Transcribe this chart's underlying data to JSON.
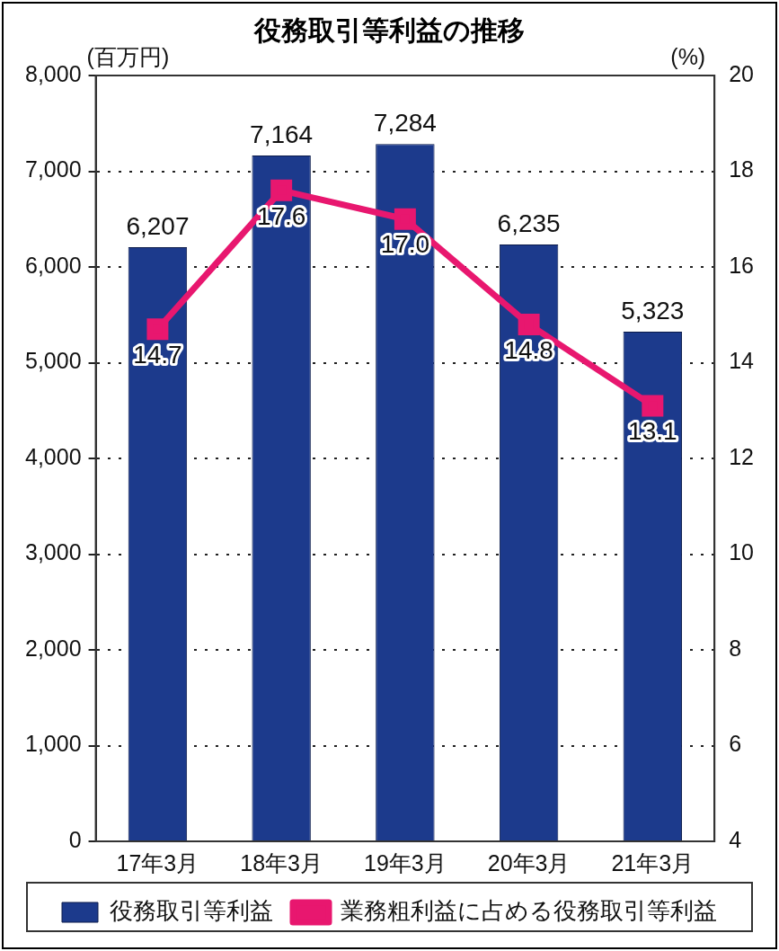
{
  "chart_data": {
    "type": "bar",
    "title": "役務取引等利益の推移",
    "ylabel": "(百万円)",
    "y2label": "(%)",
    "categories": [
      "17年3月",
      "18年3月",
      "19年3月",
      "20年3月",
      "21年3月"
    ],
    "series": [
      {
        "name": "役務取引等利益",
        "color": "#1c3a8c",
        "values": [
          6207,
          7164,
          7284,
          6235,
          5323
        ],
        "value_labels": [
          "6,207",
          "7,164",
          "7,284",
          "6,235",
          "5,323"
        ]
      },
      {
        "name": "業務粗利益に占める役務取引等利益",
        "type": "line",
        "axis": "y2",
        "color": "#e8176f",
        "marker": "square",
        "values": [
          14.7,
          17.6,
          17.0,
          14.8,
          13.1
        ],
        "value_labels": [
          "14.7",
          "17.6",
          "17.0",
          "14.8",
          "13.1"
        ]
      }
    ],
    "ylim": [
      0,
      8000
    ],
    "yticks": [
      0,
      {
        "value": 1000,
        "label": "1,000"
      },
      {
        "value": 2000,
        "label": "2,000"
      },
      {
        "value": 3000,
        "label": "3,000"
      },
      {
        "value": 4000,
        "label": "4,000"
      },
      {
        "value": 5000,
        "label": "5,000"
      },
      {
        "value": 6000,
        "label": "6,000"
      },
      {
        "value": 7000,
        "label": "7,000"
      },
      {
        "value": 8000,
        "label": "8,000"
      }
    ],
    "y2lim": [
      4,
      20
    ],
    "y2ticks": [
      4,
      6,
      8,
      10,
      12,
      14,
      16,
      18,
      20
    ],
    "grid": "y",
    "legend": "bottom"
  }
}
